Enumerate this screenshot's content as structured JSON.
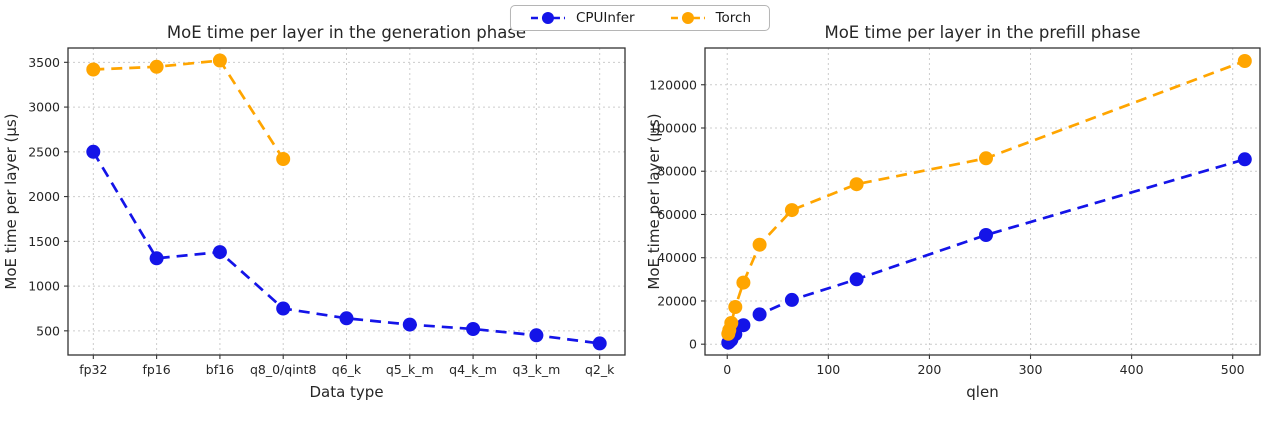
{
  "legend": {
    "items": [
      {
        "label": "CPUInfer",
        "color": "#1414e8"
      },
      {
        "label": "Torch",
        "color": "#ffa500"
      }
    ],
    "position": "top-center"
  },
  "chart_data": [
    {
      "type": "line",
      "title": "MoE time per layer in the generation phase",
      "xlabel": "Data type",
      "ylabel": "MoE time per layer (µs)",
      "x_type": "categorical",
      "categories": [
        "fp32",
        "fp16",
        "bf16",
        "q8_0/qint8",
        "q6_k",
        "q5_k_m",
        "q4_k_m",
        "q3_k_m",
        "q2_k"
      ],
      "yticks": [
        500,
        1000,
        1500,
        2000,
        2500,
        3000,
        3500
      ],
      "ylim": [
        230,
        3660
      ],
      "grid": true,
      "line_style": "dashed",
      "marker": "circle",
      "series": [
        {
          "name": "CPUInfer",
          "color": "#1414e8",
          "values": [
            2500,
            1310,
            1380,
            750,
            640,
            570,
            520,
            450,
            360
          ]
        },
        {
          "name": "Torch",
          "color": "#ffa500",
          "values": [
            3420,
            3450,
            3520,
            2420,
            null,
            null,
            null,
            null,
            null
          ]
        }
      ]
    },
    {
      "type": "line",
      "title": "MoE time per layer in the prefill phase",
      "xlabel": "qlen",
      "ylabel": "MoE time per layer (µs)",
      "x_type": "numeric",
      "x": [
        1,
        2,
        4,
        8,
        16,
        32,
        64,
        128,
        256,
        512
      ],
      "xticks": [
        0,
        100,
        200,
        300,
        400,
        500
      ],
      "xlim": [
        -22,
        527
      ],
      "yticks": [
        0,
        20000,
        40000,
        60000,
        80000,
        100000,
        120000
      ],
      "ylim": [
        -5000,
        137000
      ],
      "grid": true,
      "line_style": "dashed",
      "marker": "circle",
      "series": [
        {
          "name": "CPUInfer",
          "color": "#1414e8",
          "values": [
            700,
            1100,
            2000,
            4600,
            8800,
            13800,
            20500,
            30000,
            50500,
            85500
          ]
        },
        {
          "name": "Torch",
          "color": "#ffa500",
          "values": [
            4800,
            6500,
            9800,
            17200,
            28500,
            46000,
            62000,
            74000,
            86000,
            131000
          ]
        }
      ]
    }
  ]
}
